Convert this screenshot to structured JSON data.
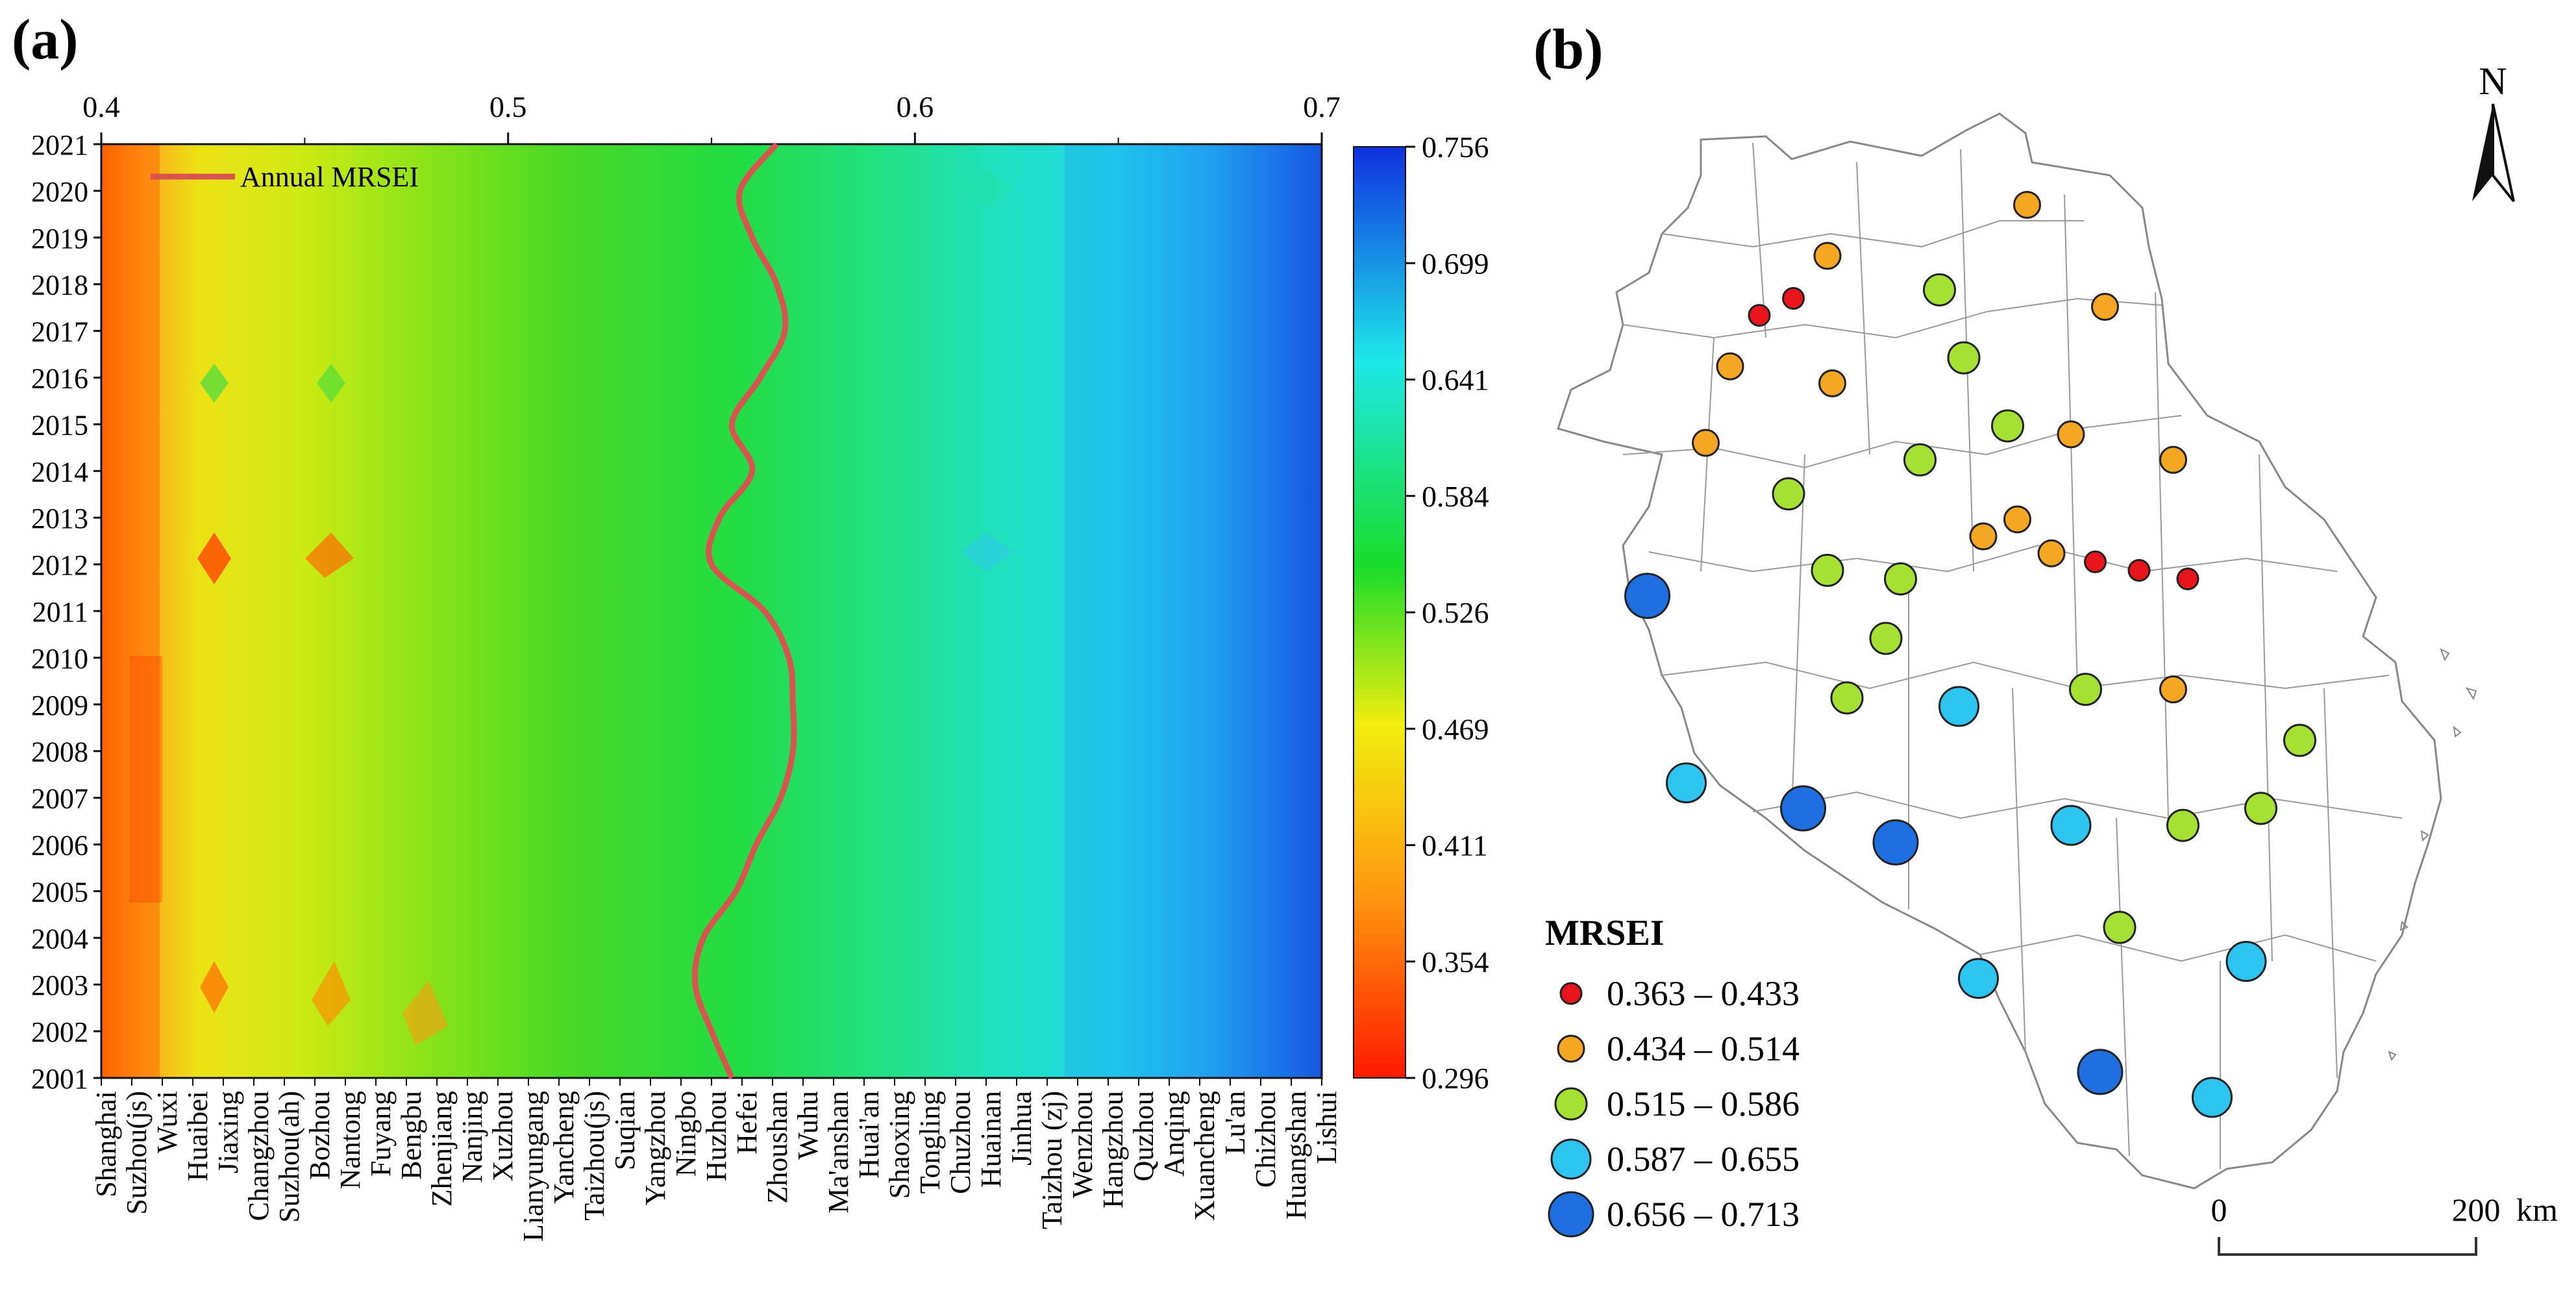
{
  "panel_a": {
    "label": "(a)",
    "chart_data": {
      "type": "heatmap",
      "title": "",
      "top_axis": {
        "ticks": [
          0.4,
          0.5,
          0.6,
          0.7
        ],
        "range": [
          0.4,
          0.7
        ]
      },
      "years": [
        2001,
        2002,
        2003,
        2004,
        2005,
        2006,
        2007,
        2008,
        2009,
        2010,
        2011,
        2012,
        2013,
        2014,
        2015,
        2016,
        2017,
        2018,
        2019,
        2020,
        2021
      ],
      "cities": [
        "Shanghai",
        "Suzhou(js)",
        "Wuxi",
        "Huaibei",
        "Jiaxing",
        "Changzhou",
        "Suzhou(ah)",
        "Bozhou",
        "Nantong",
        "Fuyang",
        "Bengbu",
        "Zhenjiang",
        "Nanjing",
        "Xuzhou",
        "Lianyungang",
        "Yancheng",
        "Taizhou(js)",
        "Suqian",
        "Yangzhou",
        "Ningbo",
        "Huzhou",
        "Hefei",
        "Zhoushan",
        "Wuhu",
        "Ma'anshan",
        "Huai'an",
        "Shaoxing",
        "Tongling",
        "Chuzhou",
        "Huainan",
        "Jinhua",
        "Taizhou (zj)",
        "Wenzhou",
        "Hangzhou",
        "Quzhou",
        "Anqing",
        "Xuancheng",
        "Lu'an",
        "Chizhou",
        "Huangshan",
        "Lishui"
      ],
      "series": [
        {
          "name": "Annual MRSEI",
          "x": [
            0.555,
            0.55,
            0.546,
            0.548,
            0.556,
            0.561,
            0.567,
            0.57,
            0.57,
            0.569,
            0.563,
            0.55,
            0.552,
            0.56,
            0.555,
            0.562,
            0.568,
            0.566,
            0.56,
            0.557,
            0.566
          ],
          "y": [
            2001,
            2002,
            2003,
            2004,
            2005,
            2006,
            2007,
            2008,
            2009,
            2010,
            2011,
            2012,
            2013,
            2014,
            2015,
            2016,
            2017,
            2018,
            2019,
            2020,
            2021
          ]
        }
      ],
      "colorbar": {
        "min": 0.296,
        "max": 0.756,
        "ticks": [
          "0.756",
          "0.699",
          "0.641",
          "0.584",
          "0.526",
          "0.469",
          "0.411",
          "0.354",
          "0.296"
        ]
      },
      "legend": {
        "label": "Annual MRSEI",
        "position": "top-left"
      }
    }
  },
  "panel_b": {
    "label": "(b)",
    "north_label": "N",
    "legend_title": "MRSEI",
    "classes": [
      {
        "label": "0.363 – 0.433",
        "color": "#e8141b"
      },
      {
        "label": "0.434 – 0.514",
        "color": "#f5a623"
      },
      {
        "label": "0.515 – 0.586",
        "color": "#a5e033"
      },
      {
        "label": "0.587 – 0.655",
        "color": "#2ec4f0"
      },
      {
        "label": "0.656 – 0.713",
        "color": "#1f6fe0"
      }
    ],
    "scale_bar": {
      "start_label": "0",
      "end_label": "200",
      "unit": "km"
    },
    "points": [
      {
        "lon": 0.67,
        "lat": 0.95,
        "cls": 1
      },
      {
        "lon": 0.26,
        "lat": 0.89,
        "cls": 1
      },
      {
        "lon": 0.19,
        "lat": 0.84,
        "cls": 0
      },
      {
        "lon": 0.12,
        "lat": 0.82,
        "cls": 0
      },
      {
        "lon": 0.49,
        "lat": 0.85,
        "cls": 2
      },
      {
        "lon": 0.83,
        "lat": 0.83,
        "cls": 1
      },
      {
        "lon": 0.06,
        "lat": 0.76,
        "cls": 1
      },
      {
        "lon": 0.27,
        "lat": 0.74,
        "cls": 1
      },
      {
        "lon": 0.54,
        "lat": 0.77,
        "cls": 2
      },
      {
        "lon": 0.63,
        "lat": 0.69,
        "cls": 2
      },
      {
        "lon": 0.76,
        "lat": 0.68,
        "cls": 1
      },
      {
        "lon": 0.01,
        "lat": 0.67,
        "cls": 1
      },
      {
        "lon": 0.45,
        "lat": 0.65,
        "cls": 2
      },
      {
        "lon": 0.97,
        "lat": 0.65,
        "cls": 1
      },
      {
        "lon": 0.18,
        "lat": 0.61,
        "cls": 2
      },
      {
        "lon": 0.65,
        "lat": 0.58,
        "cls": 1
      },
      {
        "lon": 0.58,
        "lat": 0.56,
        "cls": 1
      },
      {
        "lon": 0.72,
        "lat": 0.54,
        "cls": 1
      },
      {
        "lon": 0.81,
        "lat": 0.53,
        "cls": 0
      },
      {
        "lon": 0.9,
        "lat": 0.52,
        "cls": 0
      },
      {
        "lon": 1.0,
        "lat": 0.51,
        "cls": 0
      },
      {
        "lon": 0.26,
        "lat": 0.52,
        "cls": 2
      },
      {
        "lon": 0.41,
        "lat": 0.51,
        "cls": 2
      },
      {
        "lon": -0.11,
        "lat": 0.49,
        "cls": 4
      },
      {
        "lon": 0.38,
        "lat": 0.44,
        "cls": 2
      },
      {
        "lon": 0.3,
        "lat": 0.37,
        "cls": 2
      },
      {
        "lon": 0.53,
        "lat": 0.36,
        "cls": 3
      },
      {
        "lon": 0.79,
        "lat": 0.38,
        "cls": 2
      },
      {
        "lon": 0.97,
        "lat": 0.38,
        "cls": 1
      },
      {
        "lon": 1.23,
        "lat": 0.32,
        "cls": 2
      },
      {
        "lon": -0.03,
        "lat": 0.27,
        "cls": 3
      },
      {
        "lon": 0.21,
        "lat": 0.24,
        "cls": 4
      },
      {
        "lon": 0.4,
        "lat": 0.2,
        "cls": 4
      },
      {
        "lon": 0.76,
        "lat": 0.22,
        "cls": 3
      },
      {
        "lon": 0.99,
        "lat": 0.22,
        "cls": 2
      },
      {
        "lon": 1.15,
        "lat": 0.24,
        "cls": 2
      },
      {
        "lon": 0.86,
        "lat": 0.1,
        "cls": 2
      },
      {
        "lon": 0.57,
        "lat": 0.04,
        "cls": 3
      },
      {
        "lon": 1.12,
        "lat": 0.06,
        "cls": 3
      },
      {
        "lon": 0.82,
        "lat": -0.07,
        "cls": 4
      },
      {
        "lon": 1.05,
        "lat": -0.1,
        "cls": 3
      }
    ]
  }
}
